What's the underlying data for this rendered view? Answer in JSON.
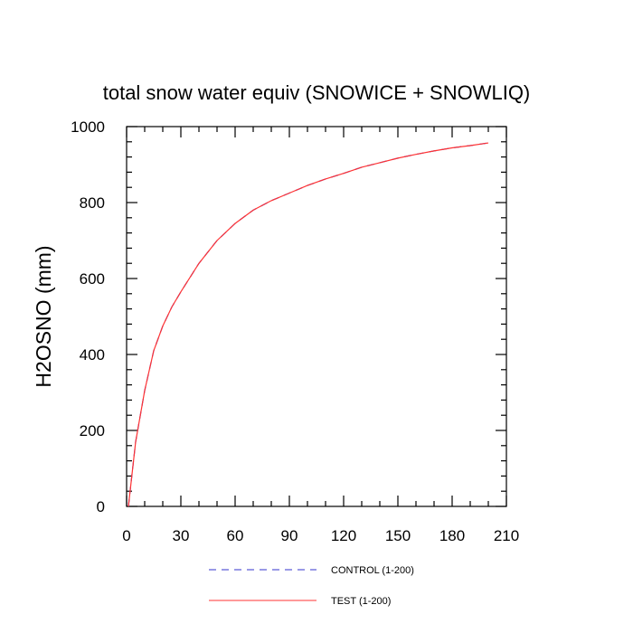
{
  "chart_data": {
    "type": "line",
    "title": "total snow water equiv (SNOWICE + SNOWLIQ)",
    "xlabel": "",
    "ylabel": "H2OSNO  (mm)",
    "xlim": [
      0,
      210
    ],
    "ylim": [
      0,
      1000
    ],
    "x_ticks": [
      0,
      30,
      60,
      90,
      120,
      150,
      180,
      210
    ],
    "y_ticks": [
      0,
      200,
      400,
      600,
      800,
      1000
    ],
    "grid": false,
    "legend_position": "bottom",
    "series": [
      {
        "name": "CONTROL (1-200)",
        "color": "#3333cc",
        "style": "dashed",
        "x": [
          1,
          5,
          10,
          15,
          20,
          25,
          30,
          40,
          50,
          60,
          70,
          80,
          90,
          100,
          110,
          120,
          130,
          140,
          150,
          160,
          170,
          180,
          190,
          200
        ],
        "y": [
          0,
          170,
          305,
          410,
          475,
          525,
          565,
          640,
          700,
          745,
          780,
          805,
          825,
          845,
          862,
          877,
          893,
          905,
          917,
          927,
          936,
          944,
          950,
          957
        ]
      },
      {
        "name": "TEST (1-200)",
        "color": "#ff3333",
        "style": "solid",
        "x": [
          1,
          5,
          10,
          15,
          20,
          25,
          30,
          40,
          50,
          60,
          70,
          80,
          90,
          100,
          110,
          120,
          130,
          140,
          150,
          160,
          170,
          180,
          190,
          200
        ],
        "y": [
          0,
          170,
          305,
          410,
          475,
          525,
          565,
          640,
          700,
          745,
          780,
          805,
          825,
          845,
          862,
          877,
          893,
          905,
          917,
          927,
          936,
          944,
          950,
          957
        ]
      }
    ]
  }
}
